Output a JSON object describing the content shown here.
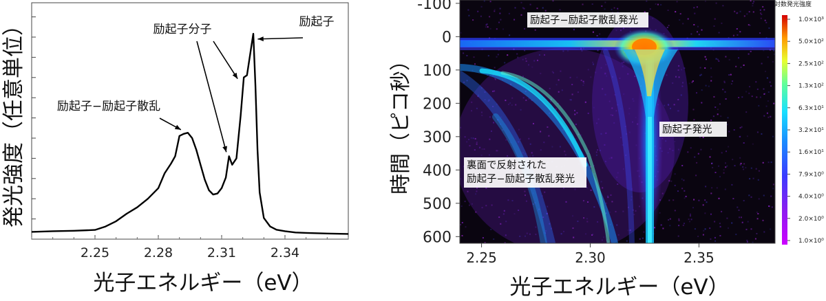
{
  "chart_data": [
    {
      "type": "line",
      "xlabel": "光子エネルギー（eV）",
      "ylabel": "発光強度（任意単位）",
      "xlim": [
        2.22,
        2.37
      ],
      "ylim": [
        0,
        1.0
      ],
      "xticks": [
        "2.25",
        "2.28",
        "2.31",
        "2.34"
      ],
      "grid": false,
      "series": [
        {
          "x": [
            2.22,
            2.23,
            2.24,
            2.25,
            2.255,
            2.26,
            2.265,
            2.27,
            2.275,
            2.28,
            2.283,
            2.286,
            2.288,
            2.29,
            2.292,
            2.294,
            2.296,
            2.298,
            2.3,
            2.302,
            2.304,
            2.306,
            2.308,
            2.31,
            2.312,
            2.3135,
            2.315,
            2.317,
            2.319,
            2.3205,
            2.322,
            2.324,
            2.325,
            2.326,
            2.327,
            2.328,
            2.33,
            2.333,
            2.336,
            2.34,
            2.345,
            2.35,
            2.36,
            2.37
          ],
          "y": [
            0.015,
            0.018,
            0.02,
            0.024,
            0.04,
            0.065,
            0.1,
            0.13,
            0.17,
            0.22,
            0.29,
            0.335,
            0.37,
            0.465,
            0.475,
            0.48,
            0.455,
            0.4,
            0.33,
            0.26,
            0.21,
            0.19,
            0.195,
            0.22,
            0.27,
            0.37,
            0.33,
            0.36,
            0.56,
            0.74,
            0.75,
            0.88,
            0.945,
            0.7,
            0.4,
            0.2,
            0.08,
            0.04,
            0.025,
            0.018,
            0.012,
            0.01,
            0.007,
            0.005
          ]
        }
      ],
      "annotations": [
        {
          "text": "励起子−励起子散乱",
          "x": 2.292,
          "y": 0.475
        },
        {
          "text": "励起子分子",
          "x": 2.3135,
          "y": 0.37
        },
        {
          "text": "励起子分子",
          "x": 2.3195,
          "y": 0.74
        },
        {
          "text": "励起子",
          "x": 2.3245,
          "y": 0.92
        }
      ]
    },
    {
      "type": "heatmap",
      "xlabel": "光子エネルギー（eV）",
      "ylabel": "時間（ピコ秒）",
      "xlim": [
        2.24,
        2.385
      ],
      "ylim": [
        -110,
        620
      ],
      "xticks": [
        "2.25",
        "2.30",
        "2.35"
      ],
      "yticks": [
        "-100",
        "0",
        "100",
        "200",
        "300",
        "400",
        "500",
        "600"
      ],
      "labels": [
        {
          "text": "励起子−励起子散乱発光",
          "x": 2.315,
          "y": -70
        },
        {
          "text": "励起子発光",
          "x": 2.33,
          "y": 275
        },
        {
          "text": "裏面で反射された\n励起子−励起子散乱発光",
          "x": 2.255,
          "y": 395
        }
      ],
      "colorbar": {
        "title": "対数発光強度",
        "scale": "log",
        "ticks": [
          "1.0×10³",
          "5.0×10²",
          "2.5×10²",
          "1.3×10²",
          "6.3×10¹",
          "3.2×10¹",
          "1.6×10¹",
          "7.9×10⁰",
          "4.0×10⁰",
          "2.0×10⁰",
          "1.0×10⁰"
        ]
      }
    }
  ]
}
